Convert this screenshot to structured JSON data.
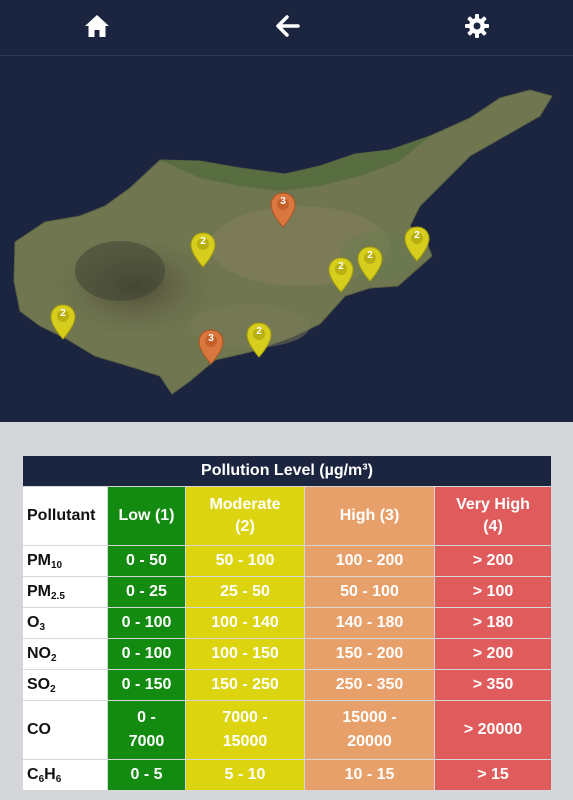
{
  "nav": {
    "home_icon": "home-icon",
    "back_icon": "arrow-left-icon",
    "settings_icon": "gear-icon"
  },
  "map": {
    "markers": [
      {
        "label": "3",
        "level": "high"
      },
      {
        "label": "2",
        "level": "moderate"
      },
      {
        "label": "2",
        "level": "moderate"
      },
      {
        "label": "2",
        "level": "moderate"
      },
      {
        "label": "2",
        "level": "moderate"
      },
      {
        "label": "2",
        "level": "moderate"
      },
      {
        "label": "3",
        "level": "high"
      },
      {
        "label": "2",
        "level": "moderate"
      }
    ]
  },
  "legend": {
    "title": "Pollution Level (µg/m³)",
    "headers": {
      "pollutant": "Pollutant",
      "low": "Low (1)",
      "moderate_line1": "Moderate",
      "moderate_line2": "(2)",
      "high": "High (3)",
      "very_high_line1": "Very High",
      "very_high_line2": "(4)"
    },
    "rows": [
      {
        "name": "PM",
        "sub": "10",
        "low": "0 - 50",
        "moderate": "50 - 100",
        "high": "100 - 200",
        "very_high": "> 200"
      },
      {
        "name": "PM",
        "sub": "2.5",
        "low": "0 - 25",
        "moderate": "25 - 50",
        "high": "50 - 100",
        "very_high": "> 100"
      },
      {
        "name": "O",
        "sub": "3",
        "low": "0 - 100",
        "moderate": "100 - 140",
        "high": "140 - 180",
        "very_high": "> 180"
      },
      {
        "name": "NO",
        "sub": "2",
        "low": "0 - 100",
        "moderate": "100 - 150",
        "high": "150 - 200",
        "very_high": "> 200"
      },
      {
        "name": "SO",
        "sub": "2",
        "low": "0 - 150",
        "moderate": "150 - 250",
        "high": "250 - 350",
        "very_high": "> 350"
      },
      {
        "name": "CO",
        "sub": "",
        "low_line1": "0 -",
        "low_line2": "7000",
        "moderate_line1": "7000 -",
        "moderate_line2": "15000",
        "high_line1": "15000 -",
        "high_line2": "20000",
        "very_high": "> 20000"
      },
      {
        "name": "C",
        "sub": "6",
        "name2": "H",
        "sub2": "6",
        "low": "0 - 5",
        "moderate": "5 - 10",
        "high": "10 - 15",
        "very_high": "> 15"
      }
    ]
  },
  "colors": {
    "nav_bg": "#1b2540",
    "low": "#138a10",
    "moderate": "#dcd40f",
    "high": "#e8a06a",
    "very_high": "#e05c5c",
    "marker_moderate": "#d6cd1c",
    "marker_high": "#d9773e"
  }
}
